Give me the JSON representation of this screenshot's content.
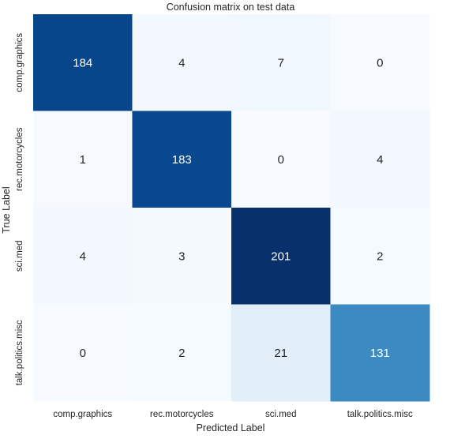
{
  "chart_data": {
    "type": "heatmap",
    "title": "Confusion matrix on test data",
    "xlabel": "Predicted Label",
    "ylabel": "True Label",
    "x_categories": [
      "comp.graphics",
      "rec.motorcycles",
      "sci.med",
      "talk.politics.misc"
    ],
    "y_categories": [
      "comp.graphics",
      "rec.motorcycles",
      "sci.med",
      "talk.politics.misc"
    ],
    "values": [
      [
        184,
        4,
        7,
        0
      ],
      [
        1,
        183,
        0,
        4
      ],
      [
        4,
        3,
        201,
        2
      ],
      [
        0,
        2,
        21,
        131
      ]
    ],
    "colormap": "Blues",
    "colorbar": false,
    "grid": false
  }
}
